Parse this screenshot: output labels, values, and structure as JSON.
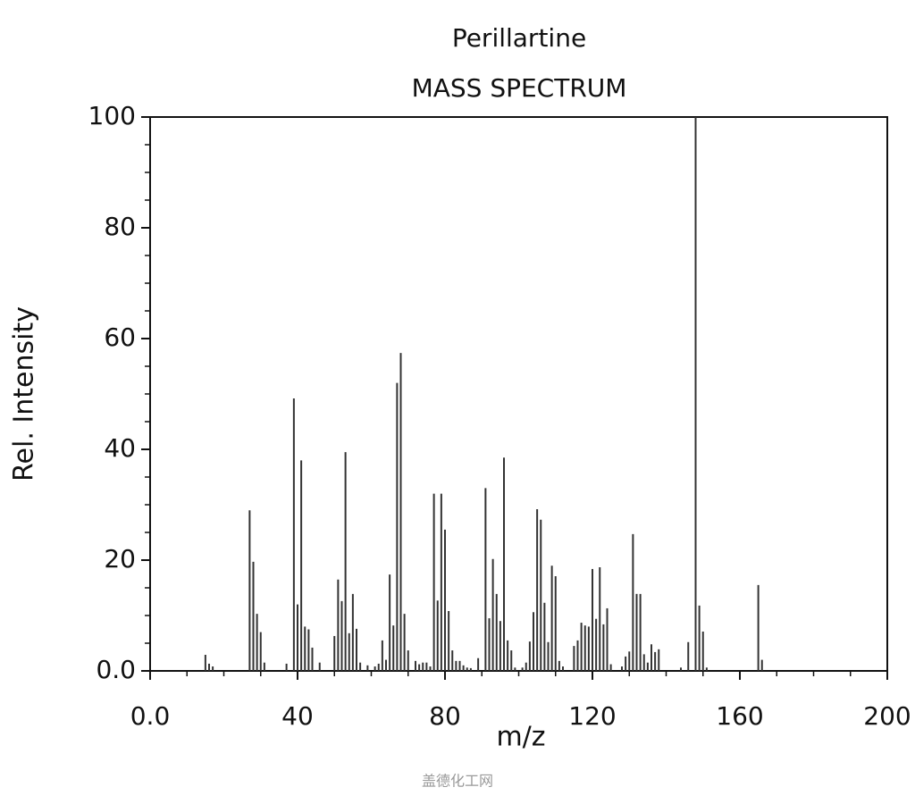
{
  "chart_data": {
    "type": "stem",
    "title": "Perillartine",
    "subtitle": "MASS SPECTRUM",
    "x_label": "m/z",
    "y_label": "Rel. Intensity",
    "watermark": "盖德化工网",
    "color": "#333333",
    "xlim": [
      0,
      200
    ],
    "ylim": [
      0,
      100
    ],
    "xticks": [
      {
        "value": 0,
        "label": "0.0"
      },
      40,
      80,
      120,
      160,
      200
    ],
    "yticks": [
      {
        "value": 0,
        "label": "0.0"
      },
      20,
      40,
      60,
      80,
      100
    ],
    "xminorticks": [
      10,
      20,
      30,
      50,
      60,
      70,
      90,
      100,
      110,
      130,
      140,
      150,
      170,
      180,
      190
    ],
    "yminorticks": [
      5,
      10,
      15,
      25,
      30,
      35,
      45,
      50,
      55,
      65,
      70,
      75,
      85,
      90,
      95
    ],
    "x": [
      15,
      16,
      17,
      27,
      28,
      29,
      30,
      31,
      37,
      39,
      40,
      41,
      42,
      43,
      44,
      46,
      50,
      51,
      52,
      53,
      54,
      55,
      56,
      57,
      59,
      61,
      62,
      63,
      64,
      65,
      66,
      67,
      68,
      69,
      70,
      72,
      73,
      74,
      75,
      76,
      77,
      78,
      79,
      80,
      81,
      82,
      83,
      84,
      85,
      86,
      87,
      89,
      91,
      92,
      93,
      94,
      95,
      96,
      97,
      98,
      99,
      101,
      102,
      103,
      104,
      105,
      106,
      107,
      108,
      109,
      110,
      111,
      112,
      115,
      116,
      117,
      118,
      119,
      120,
      121,
      122,
      123,
      124,
      125,
      128,
      129,
      130,
      131,
      132,
      133,
      134,
      135,
      136,
      137,
      138,
      144,
      146,
      148,
      149,
      150,
      151,
      165,
      166
    ],
    "values": [
      2.9,
      1.3,
      0.8,
      29,
      19.7,
      10.3,
      7,
      1.5,
      1.3,
      49.2,
      12,
      38,
      8,
      7.5,
      4.2,
      1.5,
      6.3,
      16.5,
      12.6,
      39.5,
      6.8,
      13.9,
      7.6,
      1.5,
      1,
      0.8,
      1.3,
      5.5,
      2,
      17.4,
      8.2,
      52,
      57.4,
      10.3,
      3.7,
      1.8,
      1.2,
      1.5,
      1.5,
      0.8,
      32,
      12.7,
      32,
      25.5,
      10.8,
      3.7,
      1.8,
      1.8,
      1,
      0.6,
      0.5,
      2.3,
      33,
      9.5,
      20.2,
      13.9,
      9,
      38.5,
      5.5,
      3.7,
      0.6,
      0.6,
      1.5,
      5.3,
      10.6,
      29.2,
      27.3,
      12.3,
      5.2,
      19,
      17.1,
      1.8,
      0.8,
      4.5,
      5.5,
      8.7,
      8.2,
      8,
      18.4,
      9.4,
      18.7,
      8.4,
      11.3,
      1.2,
      0.8,
      2.6,
      3.5,
      24.7,
      13.9,
      13.9,
      3,
      1.5,
      4.8,
      3.4,
      3.9,
      0.6,
      5.2,
      100,
      11.8,
      7.1,
      0.6,
      15.5,
      2
    ]
  }
}
